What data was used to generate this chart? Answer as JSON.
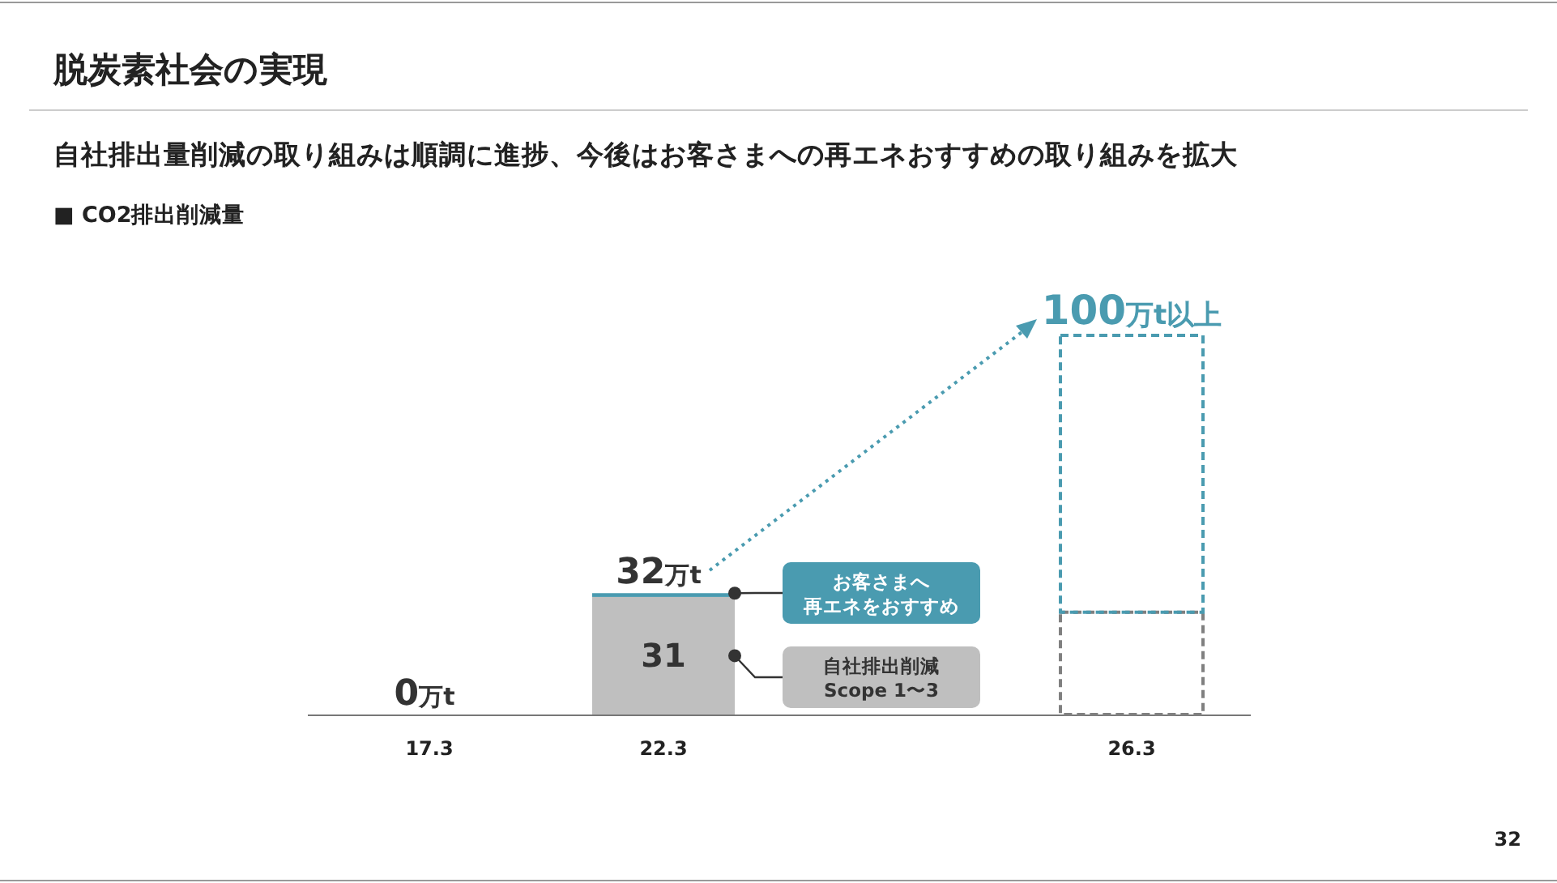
{
  "chart_data": {
    "type": "bar",
    "title": "脱炭素社会の実現",
    "subtitle": "自社排出量削減の取り組みは順調に進捗、今後はお客さまへの再エネおすすめの取り組みを拡大",
    "annotations": [
      "■ CO2排出削減量",
      "32"
    ],
    "categories": [
      "17.3",
      "22.3",
      null,
      "26.3"
    ],
    "ylim": [
      0,
      100
    ],
    "tick_labels": false,
    "stacked": true,
    "series": [
      {
        "name": "自社排出削減 Scope 1〜3",
        "color": "#bfbfbf",
        "values": [
          0,
          31,
          null,
          null
        ],
        "value_labels": [
          null,
          "31",
          null,
          null
        ]
      },
      {
        "name": "お客さまへ再エネをおすすめ",
        "color": "#4a9bb0",
        "values": [
          0,
          1,
          null,
          null
        ]
      },
      {
        "color": "#808080",
        "line_style": "dashed",
        "values": [
          null,
          null,
          null,
          27
        ]
      },
      {
        "color": "#4a9bb0",
        "line_style": "dashed",
        "values": [
          null,
          null,
          null,
          73
        ]
      }
    ],
    "totals": [
      "0万t",
      "32万t",
      null,
      "100万t以上"
    ]
  }
}
